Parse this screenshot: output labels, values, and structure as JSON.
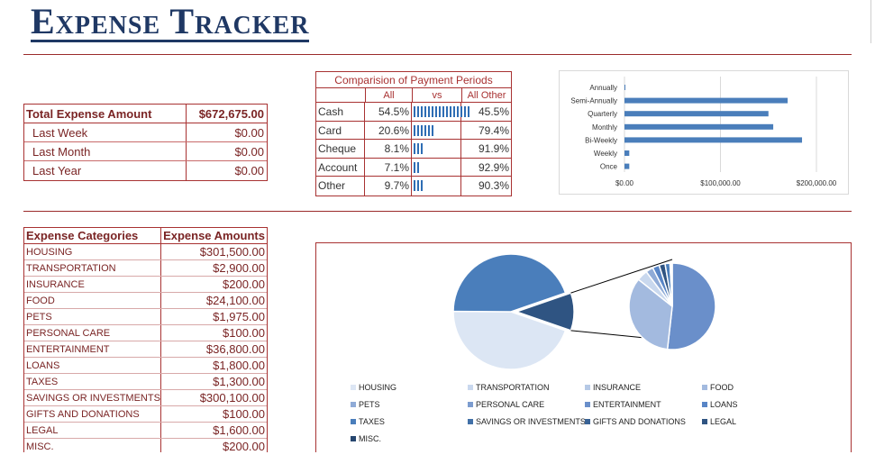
{
  "title": "Expense Tracker",
  "summary": {
    "total_label": "Total Expense Amount",
    "total_value": "$672,675.00",
    "rows": [
      {
        "label": "Last Week",
        "value": "$0.00"
      },
      {
        "label": "Last Month",
        "value": "$0.00"
      },
      {
        "label": "Last Year",
        "value": "$0.00"
      }
    ]
  },
  "comparison": {
    "title": "Comparision of Payment Periods",
    "col_all": "All",
    "col_vs": "vs",
    "col_other": "All Other",
    "rows": [
      {
        "label": "Cash",
        "all": "54.5%",
        "other": "45.5%",
        "share": 54.5
      },
      {
        "label": "Card",
        "all": "20.6%",
        "other": "79.4%",
        "share": 20.6
      },
      {
        "label": "Cheque",
        "all": "8.1%",
        "other": "91.9%",
        "share": 8.1
      },
      {
        "label": "Account",
        "all": "7.1%",
        "other": "92.9%",
        "share": 7.1
      },
      {
        "label": "Other",
        "all": "9.7%",
        "other": "90.3%",
        "share": 9.7
      }
    ]
  },
  "chart_data": [
    {
      "type": "bar",
      "orientation": "horizontal",
      "categories": [
        "Annually",
        "Semi-Annually",
        "Quarterly",
        "Monthly",
        "Bi-Weekly",
        "Weekly",
        "Once"
      ],
      "values": [
        800,
        170000,
        150000,
        155000,
        185000,
        5000,
        5000
      ],
      "xticks": [
        "$0.00",
        "$100,000.00",
        "$200,000.00"
      ],
      "xlim": [
        0,
        200000
      ],
      "color": "#4a7ebb",
      "grid": true
    },
    {
      "type": "pie",
      "subtype": "pie-of-pie",
      "categories": [
        "HOUSING",
        "TRANSPORTATION",
        "INSURANCE",
        "FOOD",
        "PETS",
        "PERSONAL CARE",
        "ENTERTAINMENT",
        "LOANS",
        "TAXES",
        "SAVINGS OR INVESTMENTS",
        "GIFTS AND DONATIONS",
        "LEGAL",
        "MISC."
      ],
      "values": [
        301500,
        2900,
        200,
        24100,
        1975,
        100,
        36800,
        1800,
        1300,
        300100,
        100,
        1600,
        200
      ],
      "colors": [
        "#dce6f4",
        "#c9d8ee",
        "#b6c9e6",
        "#a3badf",
        "#8fabd7",
        "#7c9ccf",
        "#6a8fca",
        "#5885c6",
        "#4a7ebb",
        "#4170a8",
        "#386295",
        "#2f5482",
        "#26466f"
      ],
      "legend_position": "bottom"
    }
  ],
  "categories": {
    "col_category": "Expense Categories",
    "col_amount": "Expense Amounts",
    "rows": [
      {
        "name": "Housing",
        "amount": "$301,500.00"
      },
      {
        "name": "Transportation",
        "amount": "$2,900.00"
      },
      {
        "name": "Insurance",
        "amount": "$200.00"
      },
      {
        "name": "Food",
        "amount": "$24,100.00"
      },
      {
        "name": "Pets",
        "amount": "$1,975.00"
      },
      {
        "name": "Personal Care",
        "amount": "$100.00"
      },
      {
        "name": "Entertainment",
        "amount": "$36,800.00"
      },
      {
        "name": "Loans",
        "amount": "$1,800.00"
      },
      {
        "name": "Taxes",
        "amount": "$1,300.00"
      },
      {
        "name": "Savings or Investments",
        "amount": "$300,100.00"
      },
      {
        "name": "Gifts and Donations",
        "amount": "$100.00"
      },
      {
        "name": "Legal",
        "amount": "$1,600.00"
      },
      {
        "name": "Misc.",
        "amount": "$200.00"
      }
    ]
  }
}
